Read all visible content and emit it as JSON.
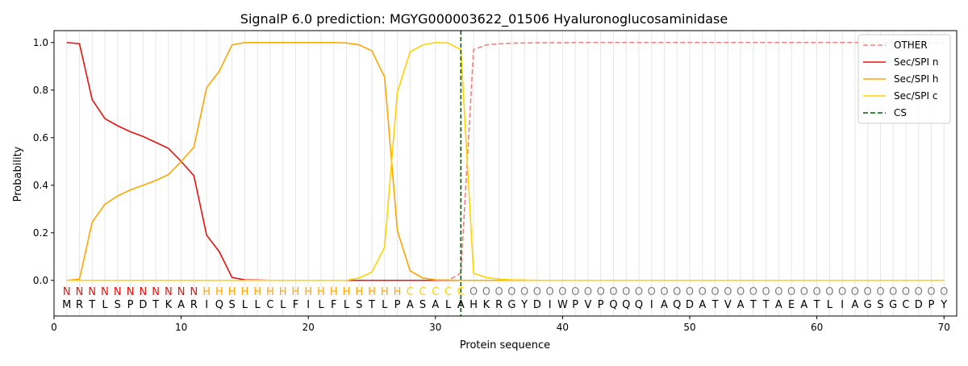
{
  "chart_data": {
    "type": "line",
    "title": "SignalP 6.0 prediction: MGYG000003622_01506 Hyaluronoglucosaminidase",
    "xlabel": "Protein sequence",
    "ylabel": "Probability",
    "xlim": [
      0,
      71
    ],
    "ylim": [
      -0.15,
      1.05
    ],
    "xticks": [
      0,
      10,
      20,
      30,
      40,
      50,
      60,
      70
    ],
    "yticks": [
      0.0,
      0.2,
      0.4,
      0.6,
      0.8,
      1.0
    ],
    "xtick_labels": [
      "0",
      "10",
      "20",
      "30",
      "40",
      "50",
      "60",
      "70"
    ],
    "ytick_labels": [
      "0.0",
      "0.2",
      "0.4",
      "0.6",
      "0.8",
      "1.0"
    ],
    "grid": "vertical lines at each residue",
    "legend_position": "top-right",
    "sequence": [
      "M",
      "R",
      "T",
      "L",
      "S",
      "P",
      "D",
      "T",
      "K",
      "A",
      "R",
      "I",
      "Q",
      "S",
      "L",
      "L",
      "C",
      "L",
      "F",
      "I",
      "L",
      "F",
      "L",
      "S",
      "T",
      "L",
      "P",
      "A",
      "S",
      "A",
      "L",
      "A",
      "H",
      "K",
      "R",
      "G",
      "Y",
      "D",
      "I",
      "W",
      "P",
      "V",
      "P",
      "Q",
      "Q",
      "Q",
      "I",
      "A",
      "Q",
      "D",
      "A",
      "T",
      "V",
      "A",
      "T",
      "T",
      "A",
      "E",
      "A",
      "T",
      "L",
      "I",
      "A",
      "G",
      "S",
      "G",
      "C",
      "D",
      "P",
      "Y"
    ],
    "labels": [
      "N",
      "N",
      "N",
      "N",
      "N",
      "N",
      "N",
      "N",
      "N",
      "N",
      "N",
      "H",
      "H",
      "H",
      "H",
      "H",
      "H",
      "H",
      "H",
      "H",
      "H",
      "H",
      "H",
      "H",
      "H",
      "H",
      "H",
      "C",
      "C",
      "C",
      "C",
      "C",
      "O",
      "O",
      "O",
      "O",
      "O",
      "O",
      "O",
      "O",
      "O",
      "O",
      "O",
      "O",
      "O",
      "O",
      "O",
      "O",
      "O",
      "O",
      "O",
      "O",
      "O",
      "O",
      "O",
      "O",
      "O",
      "O",
      "O",
      "O",
      "O",
      "O",
      "O",
      "O",
      "O",
      "O",
      "O",
      "O",
      "O",
      "O"
    ],
    "label_colors": {
      "N": "#e8120c",
      "H": "#ffa500",
      "C": "#ffd200",
      "O": "#808080"
    },
    "cs_position": 32,
    "series": [
      {
        "name": "OTHER",
        "color": "#f08080",
        "style": "dashed",
        "values": [
          0.0,
          0.0,
          0.0,
          0.0,
          0.0,
          0.0,
          0.0,
          0.0,
          0.0,
          0.0,
          0.0,
          0.0,
          0.0,
          0.0,
          0.0,
          0.0,
          0.0,
          0.0,
          0.0,
          0.0,
          0.0,
          0.0,
          0.0,
          0.0,
          0.0,
          0.0,
          0.0,
          0.0,
          0.0,
          0.0,
          0.0,
          0.03,
          0.97,
          0.99,
          0.995,
          0.997,
          0.998,
          0.999,
          0.999,
          0.999,
          1.0,
          1.0,
          1.0,
          1.0,
          1.0,
          1.0,
          1.0,
          1.0,
          1.0,
          1.0,
          1.0,
          1.0,
          1.0,
          1.0,
          1.0,
          1.0,
          1.0,
          1.0,
          1.0,
          1.0,
          1.0,
          1.0,
          1.0,
          1.0,
          1.0,
          1.0,
          1.0,
          1.0,
          1.0,
          1.0
        ]
      },
      {
        "name": "Sec/SPI n",
        "color": "#e8120c",
        "style": "solid",
        "values": [
          1.0,
          0.995,
          0.76,
          0.68,
          0.65,
          0.625,
          0.605,
          0.58,
          0.555,
          0.5,
          0.44,
          0.19,
          0.12,
          0.012,
          0.002,
          0.001,
          0.0,
          0.0,
          0.0,
          0.0,
          0.0,
          0.0,
          0.0,
          0.0,
          0.0,
          0.0,
          0.0,
          0.0,
          0.0,
          0.0,
          0.0,
          0.0,
          0.0,
          0.0,
          0.0,
          0.0,
          0.0,
          0.0,
          0.0,
          0.0,
          0.0,
          0.0,
          0.0,
          0.0,
          0.0,
          0.0,
          0.0,
          0.0,
          0.0,
          0.0,
          0.0,
          0.0,
          0.0,
          0.0,
          0.0,
          0.0,
          0.0,
          0.0,
          0.0,
          0.0,
          0.0,
          0.0,
          0.0,
          0.0,
          0.0,
          0.0,
          0.0,
          0.0,
          0.0,
          0.0
        ]
      },
      {
        "name": "Sec/SPI h",
        "color": "#ffa500",
        "style": "solid",
        "values": [
          0.0,
          0.005,
          0.245,
          0.32,
          0.355,
          0.38,
          0.4,
          0.42,
          0.445,
          0.5,
          0.56,
          0.81,
          0.88,
          0.99,
          1.0,
          1.0,
          1.0,
          1.0,
          1.0,
          1.0,
          1.0,
          1.0,
          0.998,
          0.99,
          0.965,
          0.855,
          0.21,
          0.04,
          0.01,
          0.002,
          0.001,
          0.0,
          0.0,
          0.0,
          0.0,
          0.0,
          0.0,
          0.0,
          0.0,
          0.0,
          0.0,
          0.0,
          0.0,
          0.0,
          0.0,
          0.0,
          0.0,
          0.0,
          0.0,
          0.0,
          0.0,
          0.0,
          0.0,
          0.0,
          0.0,
          0.0,
          0.0,
          0.0,
          0.0,
          0.0,
          0.0,
          0.0,
          0.0,
          0.0,
          0.0,
          0.0,
          0.0,
          0.0,
          0.0,
          0.0
        ]
      },
      {
        "name": "Sec/SPI c",
        "color": "#ffd200",
        "style": "solid",
        "values": [
          0.0,
          0.0,
          0.0,
          0.0,
          0.0,
          0.0,
          0.0,
          0.0,
          0.0,
          0.0,
          0.0,
          0.0,
          0.0,
          0.0,
          0.0,
          0.0,
          0.0,
          0.0,
          0.0,
          0.0,
          0.0,
          0.0,
          0.0,
          0.01,
          0.035,
          0.14,
          0.79,
          0.96,
          0.99,
          1.0,
          0.998,
          0.97,
          0.03,
          0.012,
          0.005,
          0.002,
          0.001,
          0.0,
          0.0,
          0.0,
          0.0,
          0.0,
          0.0,
          0.0,
          0.0,
          0.0,
          0.0,
          0.0,
          0.0,
          0.0,
          0.0,
          0.0,
          0.0,
          0.0,
          0.0,
          0.0,
          0.0,
          0.0,
          0.0,
          0.0,
          0.0,
          0.0,
          0.0,
          0.0,
          0.0,
          0.0,
          0.0,
          0.0,
          0.0,
          0.0
        ]
      },
      {
        "name": "CS",
        "color": "#006400",
        "style": "dashed-vertical"
      }
    ]
  }
}
